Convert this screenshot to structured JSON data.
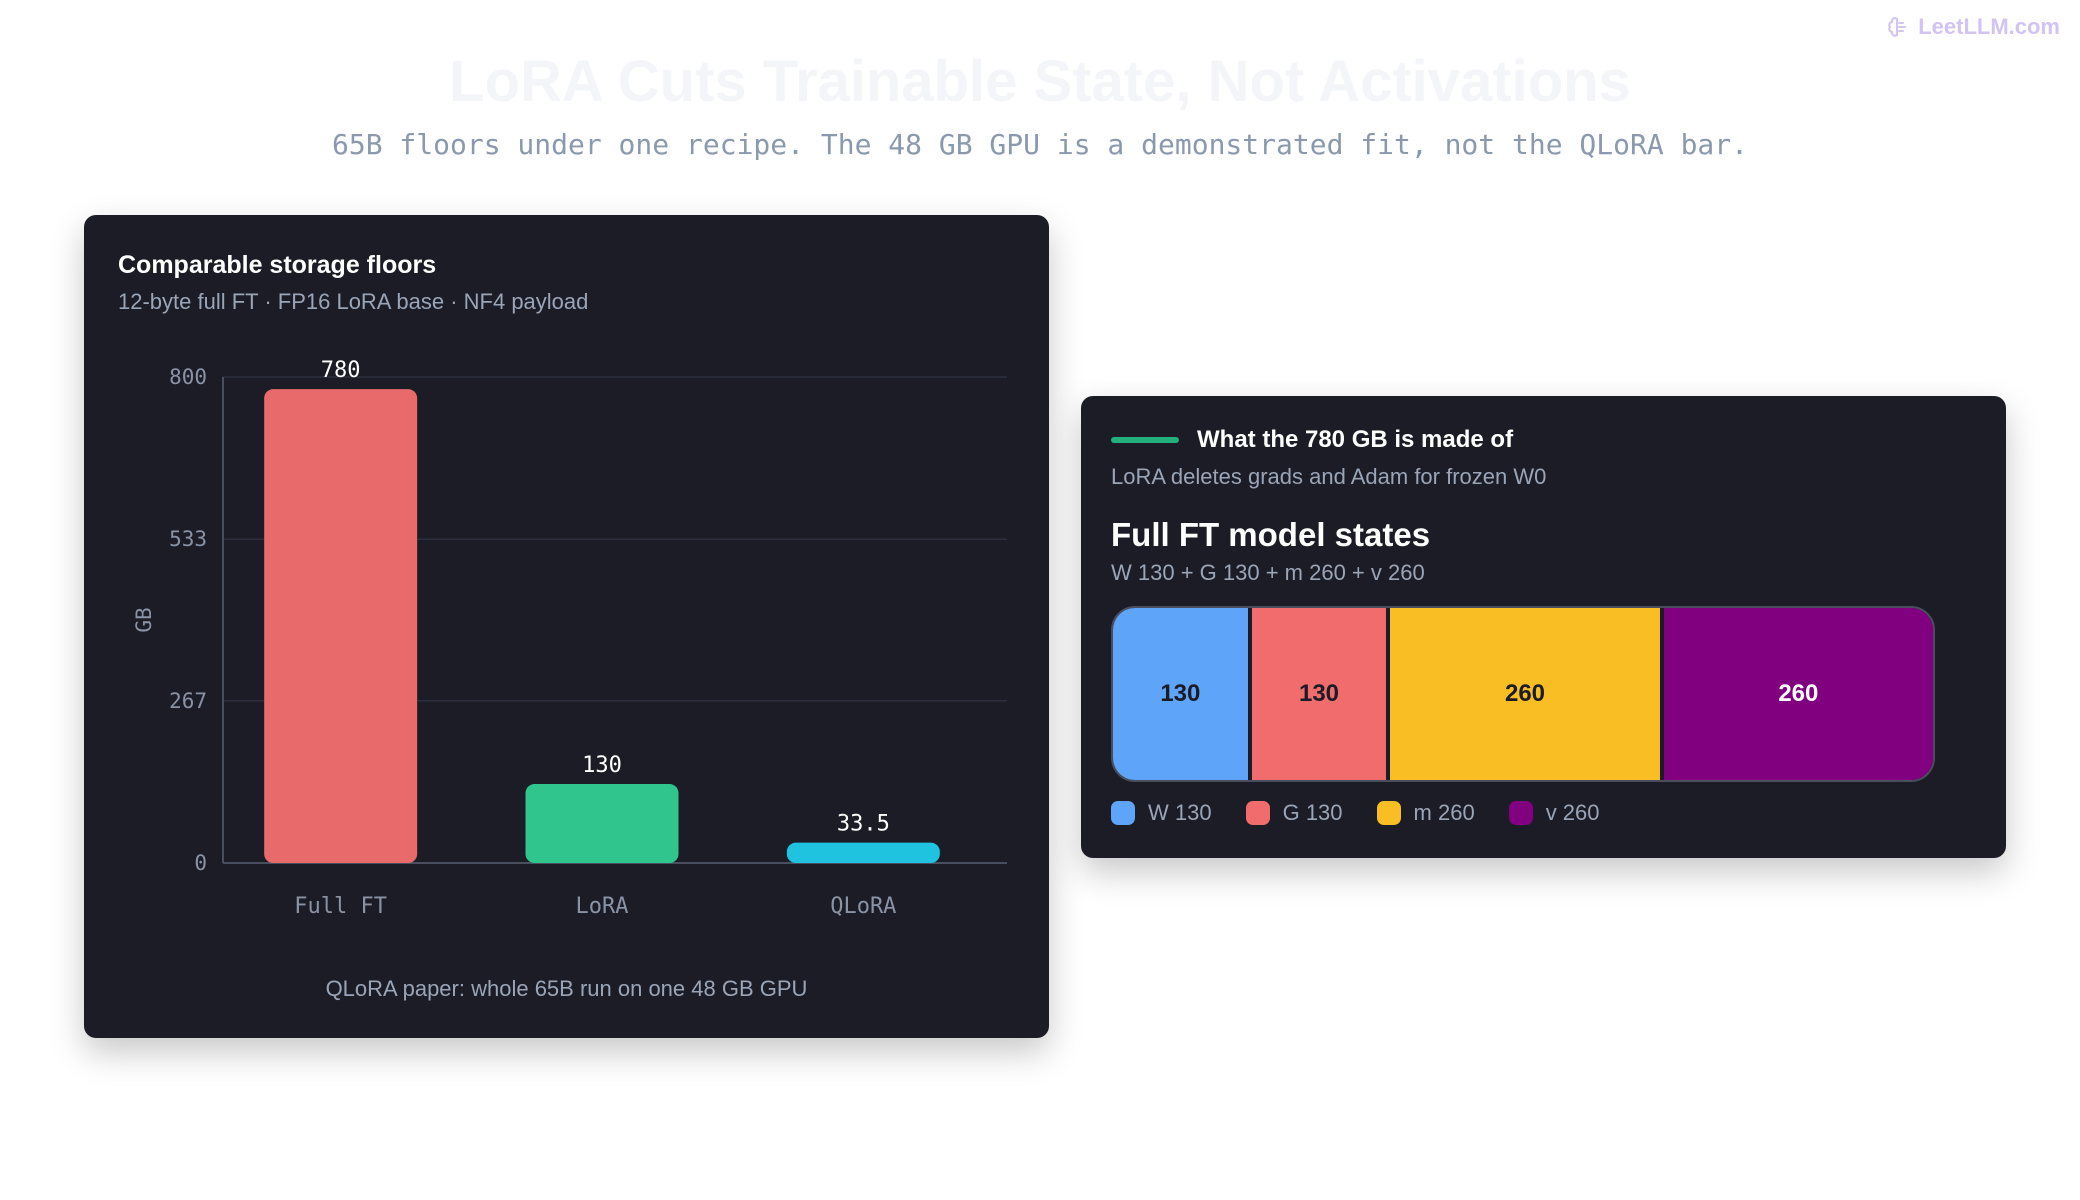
{
  "brand": {
    "name": "LeetLLM.com",
    "icon": "brain-icon"
  },
  "page": {
    "title": "LoRA Cuts Trainable State, Not Activations",
    "subtitle": "65B floors under one recipe. The 48 GB GPU is a demonstrated fit, not the QLoRA bar."
  },
  "left_card": {
    "title": "Comparable storage floors",
    "subtitle": "12-byte full FT · FP16 LoRA base · NF4 payload",
    "footnote": "QLoRA paper: whole 65B run on one 48 GB GPU"
  },
  "right_card": {
    "title": "What the 780 GB is made of",
    "subtitle": "LoRA deletes grads and Adam for frozen W0",
    "big_title": "Full FT model states",
    "formula": "W 130 + G 130 + m 260 + v 260",
    "accent_color": "#23b07d"
  },
  "chart_data": [
    {
      "type": "bar",
      "title": "Comparable storage floors",
      "categories": [
        "Full FT",
        "LoRA",
        "QLoRA"
      ],
      "values": [
        780,
        130,
        33.5
      ],
      "value_labels": [
        "780",
        "130",
        "33.5"
      ],
      "colors": [
        "#e86a6a",
        "#2fc58d",
        "#1fc3df"
      ],
      "ylabel": "GB",
      "xlabel": "",
      "ylim": [
        0,
        800
      ],
      "yticks": [
        0,
        267,
        533,
        800
      ],
      "grid": true
    },
    {
      "type": "bar",
      "orientation": "horizontal-stacked",
      "title": "Full FT model states",
      "total": 780,
      "series": [
        {
          "name": "W 130",
          "value": 130,
          "label": "130",
          "color": "#5ea4f8"
        },
        {
          "name": "G 130",
          "value": 130,
          "label": "130",
          "color": "#f16d6d"
        },
        {
          "name": "m 260",
          "value": 260,
          "label": "260",
          "color": "#f9be24"
        },
        {
          "name": "v 260",
          "value": 260,
          "label": "260",
          "color": "#800080"
        }
      ]
    }
  ]
}
